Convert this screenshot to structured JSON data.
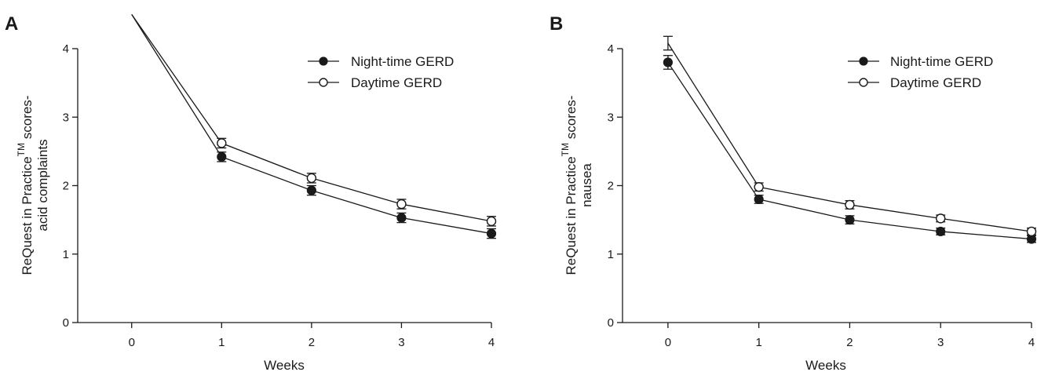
{
  "colors": {
    "ink": "#1a1a1a",
    "background": "#ffffff"
  },
  "chart_data": [
    {
      "type": "line",
      "panel_label": "A",
      "xlabel": "Weeks",
      "ylabel_line1_pre": "ReQuest in Practice",
      "ylabel_sup": "TM",
      "ylabel_line1_post": " scores-",
      "ylabel_line2": "acid complaints",
      "x": [
        0,
        1,
        2,
        3,
        4
      ],
      "x_ticks": [
        "0",
        "1",
        "2",
        "3",
        "4"
      ],
      "y_ticks": [
        "0",
        "1",
        "2",
        "3",
        "4"
      ],
      "xlim": [
        -0.6,
        4
      ],
      "ylim": [
        0,
        4
      ],
      "legend_position": "top-right",
      "series": [
        {
          "name": "Night-time GERD",
          "marker": "filled",
          "values": [
            4.5,
            2.42,
            1.93,
            1.53,
            1.3
          ],
          "errors": [
            0,
            0.07,
            0.07,
            0.07,
            0.07
          ]
        },
        {
          "name": "Daytime GERD",
          "marker": "open",
          "values": [
            4.5,
            2.62,
            2.11,
            1.73,
            1.48
          ],
          "errors": [
            0,
            0.07,
            0.07,
            0.07,
            0.07
          ]
        }
      ]
    },
    {
      "type": "line",
      "panel_label": "B",
      "xlabel": "Weeks",
      "ylabel_line1_pre": "ReQuest in Practice",
      "ylabel_sup": "TM",
      "ylabel_line1_post": " scores-",
      "ylabel_line2": "nausea",
      "x": [
        0,
        1,
        2,
        3,
        4
      ],
      "x_ticks": [
        "0",
        "1",
        "2",
        "3",
        "4"
      ],
      "y_ticks": [
        "0",
        "1",
        "2",
        "3",
        "4"
      ],
      "xlim": [
        -0.5,
        4
      ],
      "ylim": [
        0,
        4
      ],
      "legend_position": "top-right",
      "series": [
        {
          "name": "Night-time GERD",
          "marker": "filled",
          "values": [
            3.8,
            1.8,
            1.5,
            1.33,
            1.22
          ],
          "errors": [
            0.1,
            0.06,
            0.06,
            0.05,
            0.05
          ]
        },
        {
          "name": "Daytime GERD",
          "marker": "open",
          "values": [
            4.08,
            1.98,
            1.72,
            1.52,
            1.33
          ],
          "errors": [
            0.1,
            0.06,
            0.06,
            0.05,
            0.05
          ]
        }
      ]
    }
  ]
}
